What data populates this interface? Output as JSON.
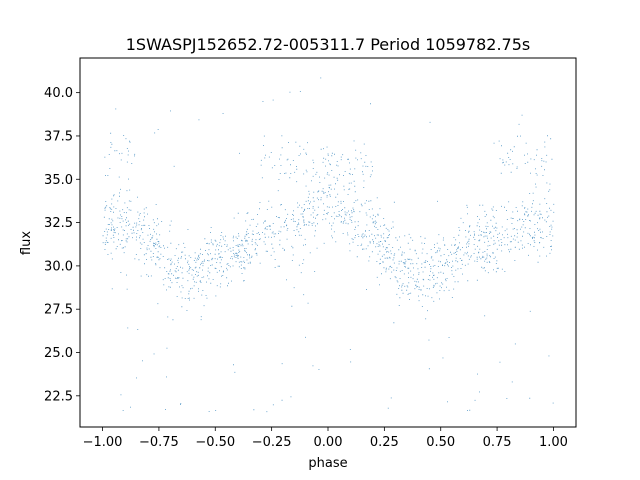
{
  "chart_data": {
    "type": "scatter",
    "title": "1SWASPJ152652.72-005311.7 Period 1059782.75s",
    "xlabel": "phase",
    "ylabel": "flux",
    "xlim": [
      -1.1,
      1.1
    ],
    "ylim": [
      20.7,
      42.0
    ],
    "xticks": [
      -1.0,
      -0.75,
      -0.5,
      -0.25,
      0.0,
      0.25,
      0.5,
      0.75,
      1.0
    ],
    "xtick_labels": [
      "−1.00",
      "−0.75",
      "−0.50",
      "−0.25",
      "0.00",
      "0.25",
      "0.50",
      "0.75",
      "1.00"
    ],
    "yticks": [
      22.5,
      25.0,
      27.5,
      30.0,
      32.5,
      35.0,
      37.5,
      40.0
    ],
    "ytick_labels": [
      "22.5",
      "25.0",
      "27.5",
      "30.0",
      "32.5",
      "35.0",
      "37.5",
      "40.0"
    ],
    "grid": false,
    "legend": "none",
    "point_color": "#1f77b4",
    "x_range": [
      -1.0,
      1.0
    ],
    "trend": {
      "phase": [
        -1.0,
        -0.9,
        -0.8,
        -0.7,
        -0.6,
        -0.5,
        -0.4,
        -0.3,
        -0.2,
        -0.1,
        0.0,
        0.1,
        0.2,
        0.3,
        0.4,
        0.5,
        0.6,
        0.7,
        0.8,
        0.9,
        1.0
      ],
      "flux": [
        32.5,
        32.5,
        31.5,
        30.0,
        29.6,
        30.2,
        31.0,
        31.6,
        32.0,
        32.8,
        33.5,
        33.0,
        32.0,
        30.2,
        29.6,
        30.2,
        31.0,
        31.6,
        32.0,
        32.5,
        32.5
      ]
    },
    "upper_branches": [
      {
        "phase_range": [
          -1.0,
          -0.85
        ],
        "flux": 36.5
      },
      {
        "phase_range": [
          -0.3,
          0.2
        ],
        "flux": 36.0
      },
      {
        "phase_range": [
          0.75,
          1.0
        ],
        "flux": 36.3
      }
    ],
    "point_count": 9000
  }
}
